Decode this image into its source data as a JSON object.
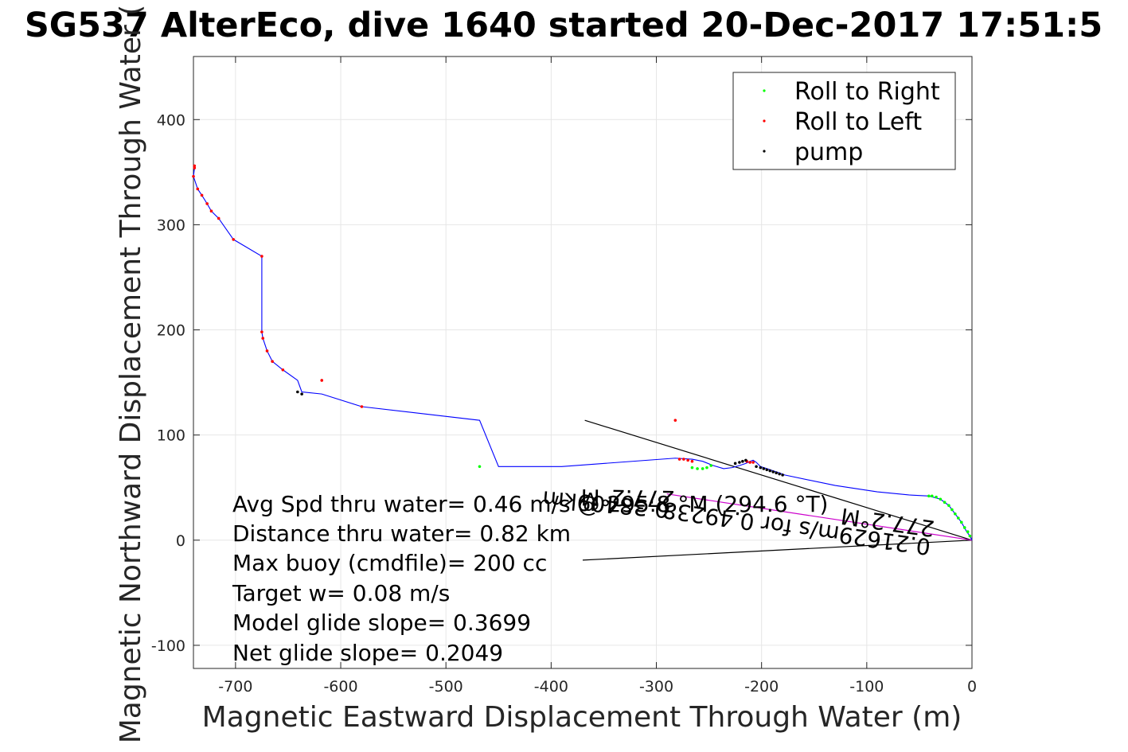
{
  "chart_data": {
    "type": "scatter",
    "title": "SG537 AlterEco, dive 1640 started 20-Dec-2017 17:51:5",
    "xlabel": "Magnetic Eastward Displacement Through Water (m)",
    "ylabel": "Magnetic Northward Displacement Through Water (",
    "xlim": [
      -740,
      0
    ],
    "ylim": [
      -122,
      460
    ],
    "xticks": [
      -700,
      -600,
      -500,
      -400,
      -300,
      -200,
      -100,
      0
    ],
    "yticks": [
      -100,
      0,
      100,
      200,
      300,
      400
    ],
    "grid": true,
    "legend_placement": "top-right",
    "series": [
      {
        "name": "Roll to Right",
        "color": "#00ff00",
        "marker": "dot",
        "x": [
          -2,
          -4,
          -7,
          -10,
          -13,
          -16,
          -19,
          -22,
          -26,
          -30,
          -34,
          -38,
          -41,
          -248,
          -252,
          -256,
          -261,
          -266,
          -468
        ],
        "y": [
          4,
          8,
          12,
          17,
          21,
          25,
          29,
          33,
          36,
          39,
          41,
          42,
          42,
          71,
          69,
          68,
          68,
          69,
          70
        ]
      },
      {
        "name": "Roll to Left",
        "color": "#ff0000",
        "marker": "dot",
        "x": [
          -739,
          -739,
          -740,
          -736,
          -732,
          -727,
          -723,
          -716,
          -702,
          -675,
          -675,
          -674,
          -670,
          -665,
          -655,
          -618,
          -580,
          -282,
          -278,
          -274,
          -270,
          -266,
          -211,
          -214,
          -208
        ],
        "y": [
          356,
          354,
          346,
          334,
          328,
          320,
          313,
          306,
          286,
          270,
          198,
          192,
          180,
          170,
          162,
          152,
          127,
          114,
          77,
          77,
          76,
          75,
          74,
          75,
          74
        ],
        "marker_on_line": true
      },
      {
        "name": "pump",
        "color": "#000000",
        "marker": "dot",
        "x": [
          -641,
          -637,
          -225,
          -221,
          -218,
          -215,
          -205,
          -201,
          -198,
          -195,
          -192,
          -189,
          -186,
          -183,
          -180
        ],
        "y": [
          141,
          139,
          73,
          74,
          75,
          76,
          70,
          69,
          68,
          67,
          66,
          65,
          64,
          63,
          62
        ]
      }
    ],
    "track": {
      "color": "#0000ff",
      "x": [
        -739,
        -739,
        -740,
        -736,
        -732,
        -727,
        -723,
        -716,
        -702,
        -675,
        -675,
        -674,
        -670,
        -665,
        -655,
        -641,
        -637,
        -618,
        -580,
        -468,
        -450,
        -390,
        -282,
        -266,
        -256,
        -246,
        -236,
        -228,
        -221,
        -215,
        -211,
        -208,
        -205,
        -201,
        -195,
        -189,
        -183,
        -178,
        -130,
        -90,
        -60,
        -41,
        -30,
        -22,
        -16,
        -10,
        -5,
        -2,
        0
      ],
      "y": [
        356,
        354,
        346,
        334,
        328,
        320,
        313,
        306,
        286,
        270,
        198,
        192,
        180,
        170,
        162,
        152,
        141,
        139,
        127,
        114,
        70,
        70,
        78,
        77,
        75,
        71,
        68,
        69,
        71,
        73,
        75,
        76,
        74,
        70,
        68,
        66,
        64,
        62,
        52,
        46,
        43,
        42,
        39,
        33,
        25,
        17,
        8,
        4,
        0
      ]
    },
    "magenta_line": {
      "color": "#cc00cc",
      "x": [
        -290,
        0
      ],
      "y": [
        44,
        0
      ]
    },
    "black_lines": [
      {
        "x": [
          -368,
          0
        ],
        "y": [
          114,
          0
        ]
      },
      {
        "x": [
          -370,
          0
        ],
        "y": [
          -19,
          0
        ]
      }
    ],
    "annotations": [
      "Avg Spd thru water=  0.46 m/s @ 295.8 °M (294.6 °T)",
      "Distance thru water=  0.82 km",
      "Max buoy (cmdfile)= 200 cc",
      "Target w= 0.08 m/s",
      "Model glide slope= 0.3699",
      "Net glide slope= 0.2049"
    ],
    "rotated_annotations": [
      {
        "text": "0.21629m/s for 0.49238",
        "angle_deg": 188
      },
      {
        "text": "277.2°M",
        "angle_deg": 188
      },
      {
        "text": "0.38409km",
        "angle_deg": 185
      },
      {
        "text": "277.2°M",
        "angle_deg": 181
      }
    ]
  },
  "icons": {
    "marker": "dot"
  }
}
